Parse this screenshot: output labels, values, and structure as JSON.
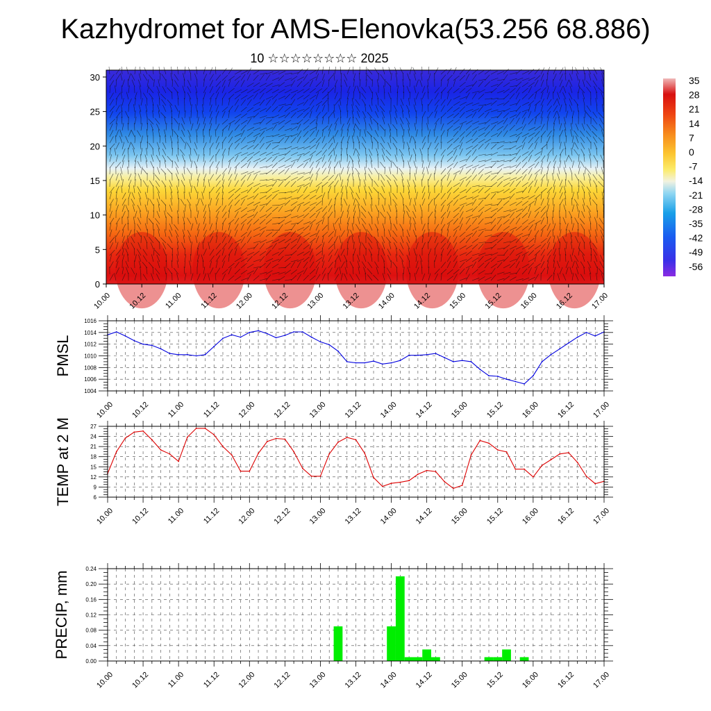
{
  "page": {
    "title": "Kazhydromet for AMS-Elenovka(53.256 68.886)",
    "subtitle": "10 ☆☆☆☆☆☆☆☆ 2025"
  },
  "colors": {
    "pmsl_line": "#0000dd",
    "temp_line": "#dd0000",
    "precip_bar": "#00ee00",
    "grid": "#444444"
  },
  "chart_data": [
    {
      "type": "heatmap",
      "name": "cross-section",
      "title": "",
      "xlabel": "",
      "ylabel": "",
      "x_tick_labels": [
        "10.00",
        "10.12",
        "11.00",
        "11.12",
        "12.00",
        "12.12",
        "13.00",
        "13.12",
        "14.00",
        "14.12",
        "15.00",
        "15.12",
        "16.00",
        "16.12",
        "17.00"
      ],
      "xlim": [
        0,
        168
      ],
      "y_ticks": [
        0,
        5,
        10,
        15,
        20,
        25,
        30
      ],
      "ylim": [
        0,
        31
      ],
      "colorbar": {
        "labels": [
          35,
          28,
          21,
          14,
          7,
          0,
          -7,
          -14,
          -21,
          -28,
          -35,
          -42,
          -49,
          -56
        ],
        "range": [
          -63,
          40
        ]
      },
      "overlay": "wind vectors"
    },
    {
      "type": "line",
      "name": "pmsl",
      "ylabel": "PMSL",
      "ylim": [
        1004,
        1016
      ],
      "y_ticks": [
        1004,
        1006,
        1008,
        1010,
        1012,
        1014,
        1016
      ],
      "x_tick_labels": [
        "10.00",
        "10.12",
        "11.00",
        "11.12",
        "12.00",
        "12.12",
        "13.00",
        "13.12",
        "14.00",
        "14.12",
        "15.00",
        "15.12",
        "16.00",
        "16.12",
        "17.00"
      ],
      "xlim": [
        0,
        168
      ],
      "x": [
        0,
        3,
        6,
        9,
        12,
        15,
        18,
        21,
        24,
        27,
        30,
        33,
        36,
        39,
        42,
        45,
        48,
        51,
        54,
        57,
        60,
        63,
        66,
        69,
        72,
        75,
        78,
        81,
        84,
        87,
        90,
        93,
        96,
        99,
        102,
        105,
        108,
        111,
        114,
        117,
        120,
        123,
        126,
        129,
        132,
        135,
        138,
        141,
        144,
        147,
        150,
        153,
        156,
        159,
        162,
        165,
        168
      ],
      "values": [
        1013.6,
        1014.1,
        1013.4,
        1012.6,
        1012.0,
        1011.8,
        1011.2,
        1010.4,
        1010.2,
        1010.2,
        1010.0,
        1010.2,
        1011.6,
        1013.0,
        1013.6,
        1013.2,
        1014.0,
        1014.3,
        1013.8,
        1013.1,
        1013.5,
        1014.1,
        1014.1,
        1013.2,
        1012.4,
        1011.9,
        1010.8,
        1009.0,
        1008.8,
        1008.8,
        1009.1,
        1008.6,
        1008.8,
        1009.2,
        1010.1,
        1010.1,
        1010.2,
        1010.4,
        1009.7,
        1009.0,
        1009.2,
        1009.0,
        1007.7,
        1006.6,
        1006.5,
        1006.0,
        1005.6,
        1005.2,
        1006.6,
        1009.0,
        1010.2,
        1011.2,
        1012.2,
        1013.2,
        1014.0,
        1013.4,
        1014.1
      ]
    },
    {
      "type": "line",
      "name": "temp2m",
      "ylabel": "TEMP at 2 M",
      "ylim": [
        6,
        27
      ],
      "y_ticks": [
        6,
        9,
        12,
        15,
        18,
        21,
        24,
        27
      ],
      "x_tick_labels": [
        "10.00",
        "10.12",
        "11.00",
        "11.12",
        "12.00",
        "12.12",
        "13.00",
        "13.12",
        "14.00",
        "14.12",
        "15.00",
        "15.12",
        "16.00",
        "16.12",
        "17.00"
      ],
      "xlim": [
        0,
        168
      ],
      "x": [
        0,
        3,
        6,
        9,
        12,
        15,
        18,
        21,
        24,
        27,
        30,
        33,
        36,
        39,
        42,
        45,
        48,
        51,
        54,
        57,
        60,
        63,
        66,
        69,
        72,
        75,
        78,
        81,
        84,
        87,
        90,
        93,
        96,
        99,
        102,
        105,
        108,
        111,
        114,
        117,
        120,
        123,
        126,
        129,
        132,
        135,
        138,
        141,
        144,
        147,
        150,
        153,
        156,
        159,
        162,
        165,
        168
      ],
      "values": [
        13.0,
        19.5,
        23.5,
        25.3,
        25.6,
        23.0,
        20.0,
        18.8,
        16.6,
        23.8,
        26.4,
        26.4,
        24.5,
        21.0,
        18.5,
        13.7,
        13.7,
        19.0,
        22.5,
        23.4,
        23.2,
        19.5,
        14.5,
        12.2,
        12.2,
        18.8,
        22.3,
        23.7,
        23.0,
        19.0,
        11.8,
        9.2,
        10.1,
        10.4,
        10.9,
        12.8,
        13.9,
        13.6,
        10.6,
        8.6,
        9.5,
        18.5,
        22.8,
        22.0,
        20.0,
        19.4,
        14.3,
        14.3,
        12.0,
        15.4,
        17.1,
        18.8,
        19.2,
        16.3,
        12.2,
        10.0,
        10.7
      ]
    },
    {
      "type": "bar",
      "name": "precip",
      "ylabel": "PRECIP, mm",
      "ylim": [
        0,
        0.24
      ],
      "y_ticks": [
        0.0,
        0.04,
        0.08,
        0.12,
        0.16,
        0.2,
        0.24
      ],
      "y_tick_labels": [
        "0.00",
        "0.04",
        "0.08",
        "0.12",
        "0.16",
        "0.20",
        "0.24"
      ],
      "x_tick_labels": [
        "10.00",
        "10.12",
        "11.00",
        "11.12",
        "12.00",
        "12.12",
        "13.00",
        "13.12",
        "14.00",
        "14.12",
        "15.00",
        "15.12",
        "16.00",
        "16.12",
        "17.00"
      ],
      "xlim": [
        0,
        168
      ],
      "bar_hours": 3,
      "x": [
        78,
        96,
        99,
        102,
        105,
        108,
        111,
        129,
        132,
        135,
        141
      ],
      "values": [
        0.09,
        0.09,
        0.22,
        0.01,
        0.01,
        0.03,
        0.01,
        0.01,
        0.01,
        0.03,
        0.01
      ]
    }
  ]
}
